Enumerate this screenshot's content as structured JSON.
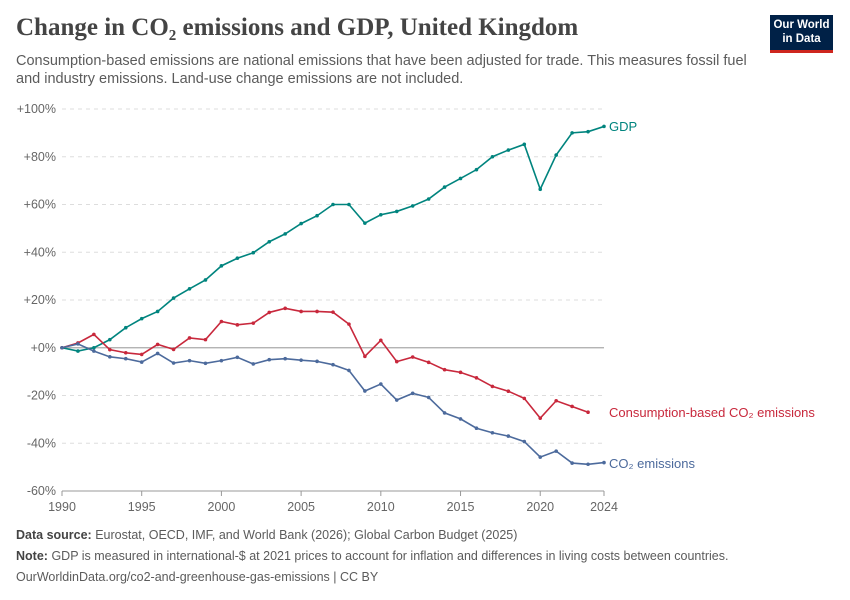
{
  "header": {
    "title": "Change in CO₂ emissions and GDP, United Kingdom",
    "subtitle": "Consumption-based emissions are national emissions that have been adjusted for trade. This measures fossil fuel and industry emissions. Land-use change emissions are not included.",
    "logo": "Our World in Data"
  },
  "footer": {
    "source_label": "Data source:",
    "source": "Eurostat, OECD, IMF, and World Bank (2026); Global Carbon Budget (2025)",
    "note_label": "Note:",
    "note": "GDP is measured in international-$ at 2021 prices to account for inflation and differences in living costs between countries.",
    "url": "OurWorldinData.org/co2-and-greenhouse-gas-emissions | CC BY"
  },
  "chart_data": {
    "type": "line",
    "xlim": [
      1990,
      2024
    ],
    "ylim": [
      -60,
      100
    ],
    "x_ticks": [
      "1990",
      "1995",
      "2000",
      "2005",
      "2010",
      "2015",
      "2020",
      "2024"
    ],
    "y_ticks": [
      "-60%",
      "-40%",
      "-20%",
      "+0%",
      "+20%",
      "+40%",
      "+60%",
      "+80%",
      "+100%"
    ],
    "grid": "horizontal dashed",
    "colors": {
      "gdp": "#00847e",
      "consumption": "#c8283c",
      "co2": "#4c6a9c"
    },
    "series": [
      {
        "name": "GDP",
        "color": "#00847e",
        "start": 1990,
        "values": [
          0,
          -1.4,
          0,
          3.4,
          8.4,
          12.2,
          15.2,
          20.8,
          24.7,
          28.4,
          34.3,
          37.5,
          39.8,
          44.4,
          47.7,
          52,
          55.3,
          60,
          60,
          52.2,
          55.7,
          57.1,
          59.4,
          62.3,
          67.3,
          70.9,
          74.6,
          80,
          82.8,
          85.2,
          66.4,
          80.7,
          90,
          90.5,
          92.7
        ]
      },
      {
        "name": "Consumption-based CO₂ emissions",
        "color": "#c8283c",
        "start": 1990,
        "values": [
          0,
          2,
          5.6,
          -0.8,
          -2.1,
          -2.8,
          1.4,
          -0.7,
          4.1,
          3.4,
          11,
          9.6,
          10.3,
          14.8,
          16.5,
          15.2,
          15.2,
          14.9,
          9.9,
          -3.6,
          3.1,
          -5.8,
          -3.9,
          -6.1,
          -9.2,
          -10.3,
          -12.6,
          -16.2,
          -18.2,
          -21.2,
          -29.5,
          -22.2,
          -24.6,
          -27
        ]
      },
      {
        "name": "CO₂ emissions",
        "color": "#4c6a9c",
        "start": 1990,
        "values": [
          0,
          1.6,
          -1.4,
          -3.8,
          -4.6,
          -6,
          -2.4,
          -6.4,
          -5.4,
          -6.5,
          -5.4,
          -4,
          -6.8,
          -5,
          -4.6,
          -5.2,
          -5.7,
          -7.1,
          -9.5,
          -18.1,
          -15.2,
          -21.9,
          -19.1,
          -20.8,
          -27.3,
          -29.8,
          -33.7,
          -35.6,
          -37,
          -39.3,
          -45.8,
          -43.3,
          -48.3,
          -48.8,
          -48.1
        ]
      }
    ]
  }
}
